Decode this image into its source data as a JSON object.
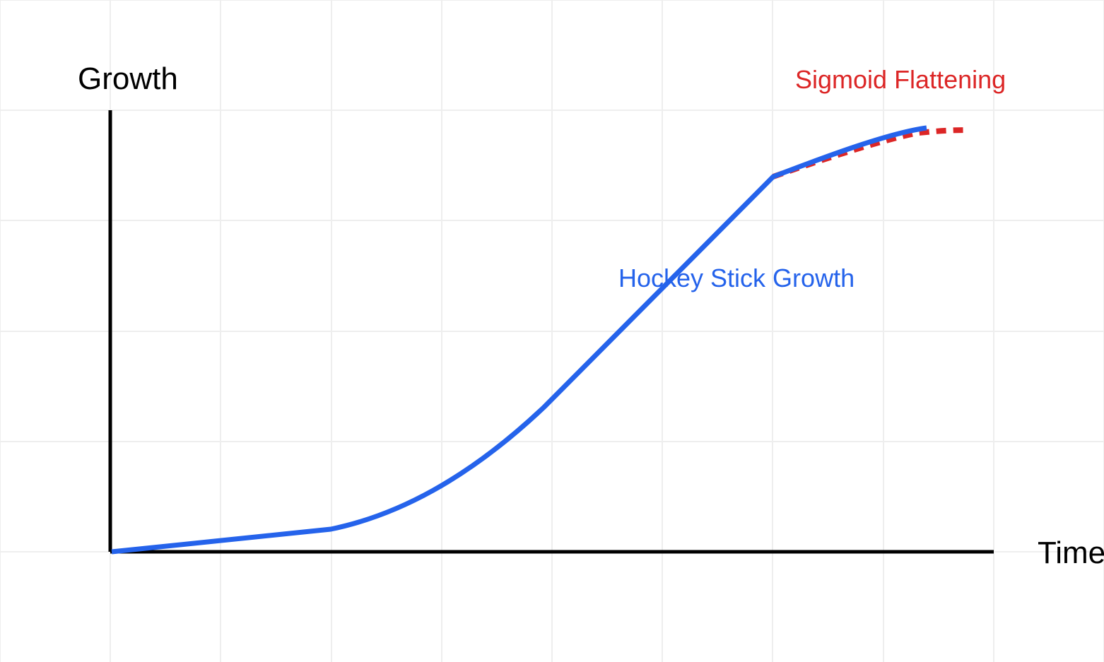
{
  "labels": {
    "y_axis": "Growth",
    "x_axis": "Time",
    "hockey_stick": "Hockey Stick Growth",
    "sigmoid": "Sigmoid Flattening"
  },
  "colors": {
    "background": "#ffffff",
    "grid": "#eeeeee",
    "axis": "#000000",
    "hockey_stick": "#2563eb",
    "sigmoid": "#dc2626"
  },
  "grid": {
    "visible": true
  }
}
